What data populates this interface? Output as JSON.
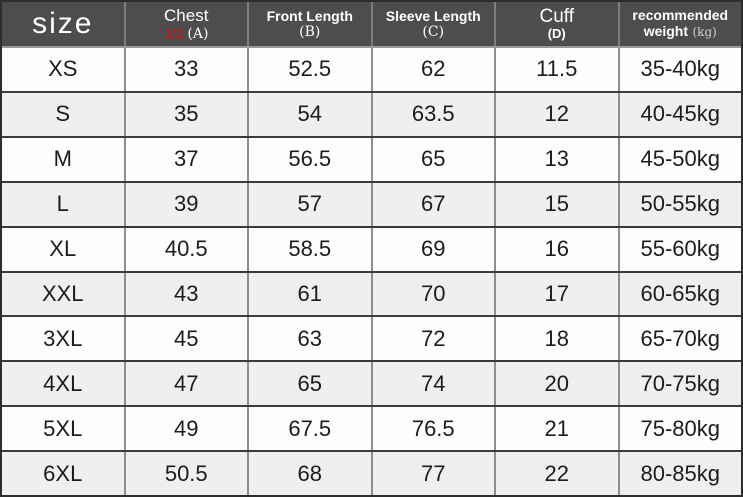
{
  "header": {
    "size_label": "size",
    "chest": {
      "title": "Chest",
      "fraction": "1/2",
      "letter": "(A)"
    },
    "front_length": {
      "title": "Front Length",
      "letter": "(B)"
    },
    "sleeve_length": {
      "title": "Sleeve Length",
      "letter": "(C)"
    },
    "cuff": {
      "title": "Cuff",
      "letter": "(D)"
    },
    "recommended": {
      "line1": "recommended",
      "line2": "weight",
      "unit": "(kg)"
    }
  },
  "rows": [
    {
      "size": "XS",
      "chest": "33",
      "front_length": "52.5",
      "sleeve_length": "62",
      "cuff": "11.5",
      "weight": "35-40kg"
    },
    {
      "size": "S",
      "chest": "35",
      "front_length": "54",
      "sleeve_length": "63.5",
      "cuff": "12",
      "weight": "40-45kg"
    },
    {
      "size": "M",
      "chest": "37",
      "front_length": "56.5",
      "sleeve_length": "65",
      "cuff": "13",
      "weight": "45-50kg"
    },
    {
      "size": "L",
      "chest": "39",
      "front_length": "57",
      "sleeve_length": "67",
      "cuff": "15",
      "weight": "50-55kg"
    },
    {
      "size": "XL",
      "chest": "40.5",
      "front_length": "58.5",
      "sleeve_length": "69",
      "cuff": "16",
      "weight": "55-60kg"
    },
    {
      "size": "XXL",
      "chest": "43",
      "front_length": "61",
      "sleeve_length": "70",
      "cuff": "17",
      "weight": "60-65kg"
    },
    {
      "size": "3XL",
      "chest": "45",
      "front_length": "63",
      "sleeve_length": "72",
      "cuff": "18",
      "weight": "65-70kg"
    },
    {
      "size": "4XL",
      "chest": "47",
      "front_length": "65",
      "sleeve_length": "74",
      "cuff": "20",
      "weight": "70-75kg"
    },
    {
      "size": "5XL",
      "chest": "49",
      "front_length": "67.5",
      "sleeve_length": "76.5",
      "cuff": "21",
      "weight": "75-80kg"
    },
    {
      "size": "6XL",
      "chest": "50.5",
      "front_length": "68",
      "sleeve_length": "77",
      "cuff": "22",
      "weight": "80-85kg"
    }
  ],
  "colors": {
    "header_bg": "#4d4d4d",
    "header_text": "#ffffff",
    "accent_red": "#b22020",
    "row_white": "#fdfdfd",
    "row_alt": "#f0efed",
    "grid_horizontal": "#3b3b3b",
    "grid_vertical": "#8e8e8e",
    "outer_border": "#2d2d2d",
    "body_text": "#1c1c1c"
  },
  "chart_data": {
    "type": "table",
    "title": "size chart",
    "columns": [
      "size",
      "Chest 1/2 (A)",
      "Front Length (B)",
      "Sleeve Length (C)",
      "Cuff (D)",
      "recommended weight (kg)"
    ],
    "rows": [
      [
        "XS",
        33,
        52.5,
        62,
        11.5,
        "35-40kg"
      ],
      [
        "S",
        35,
        54,
        63.5,
        12,
        "40-45kg"
      ],
      [
        "M",
        37,
        56.5,
        65,
        13,
        "45-50kg"
      ],
      [
        "L",
        39,
        57,
        67,
        15,
        "50-55kg"
      ],
      [
        "XL",
        40.5,
        58.5,
        69,
        16,
        "55-60kg"
      ],
      [
        "XXL",
        43,
        61,
        70,
        17,
        "60-65kg"
      ],
      [
        "3XL",
        45,
        63,
        72,
        18,
        "65-70kg"
      ],
      [
        "4XL",
        47,
        65,
        74,
        20,
        "70-75kg"
      ],
      [
        "5XL",
        49,
        67.5,
        76.5,
        21,
        "75-80kg"
      ],
      [
        "6XL",
        50.5,
        68,
        77,
        22,
        "80-85kg"
      ]
    ]
  }
}
